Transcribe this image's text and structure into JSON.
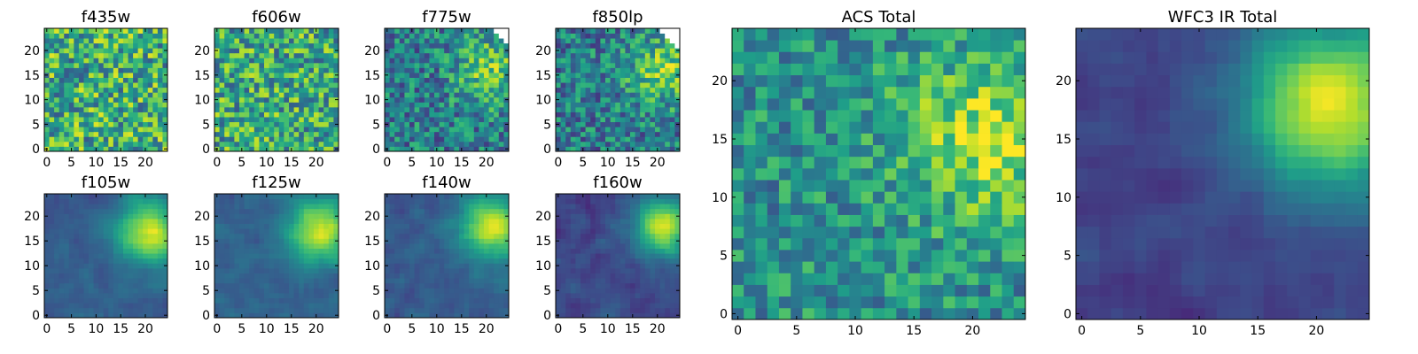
{
  "chart_data": [
    {
      "type": "heatmap",
      "title": "f435w",
      "xticks": [
        "0",
        "5",
        "10",
        "15",
        "20"
      ],
      "yticks": [
        "0",
        "5",
        "10",
        "15",
        "20"
      ],
      "grid": false,
      "colormap": "viridis",
      "size": 25,
      "pattern": "noise",
      "level": 0.62,
      "spread": 0.34,
      "blob": {
        "x": 20,
        "y": 18,
        "amp": 0.0,
        "sigma": 4
      },
      "masked": []
    },
    {
      "type": "heatmap",
      "title": "f606w",
      "xticks": [
        "0",
        "5",
        "10",
        "15",
        "20"
      ],
      "yticks": [
        "0",
        "5",
        "10",
        "15",
        "20"
      ],
      "grid": false,
      "colormap": "viridis",
      "size": 25,
      "pattern": "noise",
      "level": 0.6,
      "spread": 0.32,
      "blob": {
        "x": 20,
        "y": 18,
        "amp": 0.0,
        "sigma": 4
      },
      "masked": []
    },
    {
      "type": "heatmap",
      "title": "f775w",
      "xticks": [
        "0",
        "5",
        "10",
        "15",
        "20"
      ],
      "yticks": [
        "0",
        "5",
        "10",
        "15",
        "20"
      ],
      "grid": false,
      "colormap": "viridis",
      "size": 25,
      "pattern": "noise",
      "level": 0.42,
      "spread": 0.26,
      "blob": {
        "x": 21,
        "y": 16,
        "amp": 0.35,
        "sigma": 5
      },
      "masked": [
        [
          22,
          24
        ],
        [
          23,
          24
        ],
        [
          24,
          24
        ],
        [
          23,
          23
        ],
        [
          24,
          23
        ],
        [
          24,
          22
        ]
      ]
    },
    {
      "type": "heatmap",
      "title": "f850lp",
      "xticks": [
        "0",
        "5",
        "10",
        "15",
        "20"
      ],
      "yticks": [
        "0",
        "5",
        "10",
        "15",
        "20"
      ],
      "grid": false,
      "colormap": "viridis",
      "size": 25,
      "pattern": "noise",
      "level": 0.42,
      "spread": 0.26,
      "blob": {
        "x": 21,
        "y": 16,
        "amp": 0.35,
        "sigma": 5
      },
      "masked": [
        [
          21,
          24
        ],
        [
          22,
          24
        ],
        [
          23,
          24
        ],
        [
          24,
          24
        ],
        [
          22,
          23
        ],
        [
          23,
          23
        ],
        [
          24,
          23
        ],
        [
          23,
          22
        ],
        [
          24,
          22
        ],
        [
          24,
          21
        ]
      ]
    },
    {
      "type": "heatmap",
      "title": "f105w",
      "xticks": [
        "0",
        "5",
        "10",
        "15",
        "20"
      ],
      "yticks": [
        "0",
        "5",
        "10",
        "15",
        "20"
      ],
      "grid": false,
      "colormap": "viridis",
      "size": 25,
      "pattern": "smooth",
      "level": 0.3,
      "spread": 0.14,
      "blob": {
        "x": 21,
        "y": 17,
        "amp": 0.65,
        "sigma": 4.5
      },
      "masked": []
    },
    {
      "type": "heatmap",
      "title": "f125w",
      "xticks": [
        "0",
        "5",
        "10",
        "15",
        "20"
      ],
      "yticks": [
        "0",
        "5",
        "10",
        "15",
        "20"
      ],
      "grid": false,
      "colormap": "viridis",
      "size": 25,
      "pattern": "smooth",
      "level": 0.32,
      "spread": 0.14,
      "blob": {
        "x": 21,
        "y": 17,
        "amp": 0.62,
        "sigma": 4.5
      },
      "masked": []
    },
    {
      "type": "heatmap",
      "title": "f140w",
      "xticks": [
        "0",
        "5",
        "10",
        "15",
        "20"
      ],
      "yticks": [
        "0",
        "5",
        "10",
        "15",
        "20"
      ],
      "grid": false,
      "colormap": "viridis",
      "size": 25,
      "pattern": "smooth",
      "level": 0.28,
      "spread": 0.16,
      "blob": {
        "x": 21,
        "y": 18,
        "amp": 0.65,
        "sigma": 4.5
      },
      "masked": []
    },
    {
      "type": "heatmap",
      "title": "f160w",
      "xticks": [
        "0",
        "5",
        "10",
        "15",
        "20"
      ],
      "yticks": [
        "0",
        "5",
        "10",
        "15",
        "20"
      ],
      "grid": false,
      "colormap": "viridis",
      "size": 25,
      "pattern": "smooth",
      "level": 0.22,
      "spread": 0.16,
      "blob": {
        "x": 21,
        "y": 18,
        "amp": 0.72,
        "sigma": 4
      },
      "masked": []
    },
    {
      "type": "heatmap",
      "title": "ACS Total",
      "xticks": [
        "0",
        "5",
        "10",
        "15",
        "20"
      ],
      "yticks": [
        "0",
        "5",
        "10",
        "15",
        "20"
      ],
      "grid": false,
      "colormap": "viridis",
      "size": 25,
      "pattern": "noise",
      "level": 0.5,
      "spread": 0.22,
      "blob": {
        "x": 21,
        "y": 15,
        "amp": 0.38,
        "sigma": 5
      },
      "masked": []
    },
    {
      "type": "heatmap",
      "title": "WFC3 IR Total",
      "xticks": [
        "0",
        "5",
        "10",
        "15",
        "20"
      ],
      "yticks": [
        "0",
        "5",
        "10",
        "15",
        "20"
      ],
      "grid": false,
      "colormap": "viridis",
      "size": 25,
      "pattern": "smooth",
      "level": 0.2,
      "spread": 0.12,
      "blob": {
        "x": 21,
        "y": 18,
        "amp": 0.78,
        "sigma": 5
      },
      "masked": []
    }
  ],
  "colors": {
    "mask": "#ffffff",
    "frame": "#000000"
  }
}
